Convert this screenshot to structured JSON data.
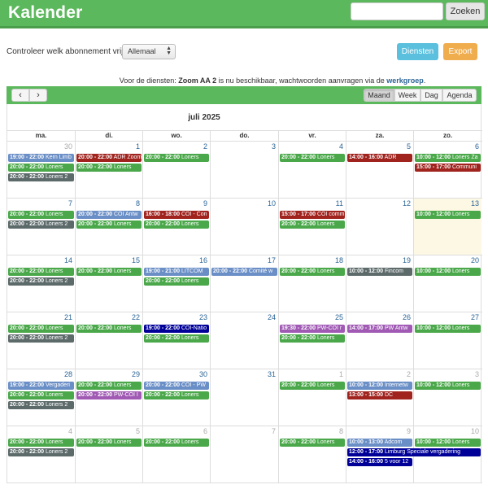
{
  "app": {
    "title": "Kalender"
  },
  "search": {
    "placeholder": "",
    "button": "Zoeken"
  },
  "controls": {
    "label": "Controleer welk abonnement vrij is:",
    "select_value": "Allemaal",
    "diensten": "Diensten",
    "export": "Export"
  },
  "notice": {
    "prefix": "Voor de diensten: ",
    "bold": "Zoom AA 2",
    "middle": " is nu beschikbaar, wachtwoorden aanvragen via de ",
    "link": "werkgroep",
    "suffix": "."
  },
  "toolbar": {
    "prev": "‹",
    "next": "›",
    "views": [
      "Maand",
      "Week",
      "Dag",
      "Agenda"
    ],
    "active_view": "Maand"
  },
  "calendar": {
    "title": "juli 2025",
    "weekdays": [
      "ma.",
      "di.",
      "wo.",
      "do.",
      "vr.",
      "za.",
      "zo."
    ],
    "colors": {
      "blue": "#6a8ec6",
      "green": "#4aa84a",
      "gray": "#5d6a6a",
      "red": "#a0231e",
      "purple": "#a05ab4",
      "navy": "#000099",
      "today_bg": "#fcf8e3"
    },
    "weeks": [
      [
        {
          "n": "30",
          "other": true,
          "ev": [
            {
              "time": "19:00 - 22:00",
              "title": "Kern Limb",
              "color": "blue"
            },
            {
              "time": "20:00 - 22:00",
              "title": "Loners",
              "color": "green"
            },
            {
              "time": "20:00 - 22:00",
              "title": "Loners 2",
              "color": "gray"
            }
          ]
        },
        {
          "n": "1",
          "ev": [
            {
              "time": "20:00 - 22:00",
              "title": "ADR Zoom",
              "color": "red"
            },
            {
              "time": "20:00 - 22:00",
              "title": "Loners",
              "color": "green"
            }
          ]
        },
        {
          "n": "2",
          "ev": [
            {
              "time": "20:00 - 22:00",
              "title": "Loners",
              "color": "green"
            }
          ]
        },
        {
          "n": "3",
          "ev": []
        },
        {
          "n": "4",
          "ev": [
            {
              "time": "20:00 - 22:00",
              "title": "Loners",
              "color": "green"
            }
          ]
        },
        {
          "n": "5",
          "ev": [
            {
              "time": "14:00 - 16:00",
              "title": "ADR",
              "color": "red"
            }
          ]
        },
        {
          "n": "6",
          "ev": [
            {
              "time": "10:00 - 12:00",
              "title": "Loners Za",
              "color": "green"
            },
            {
              "time": "15:00 - 17:00",
              "title": "Communi",
              "color": "red"
            }
          ]
        }
      ],
      [
        {
          "n": "7",
          "ev": [
            {
              "time": "20:00 - 22:00",
              "title": "Loners",
              "color": "green"
            },
            {
              "time": "20:00 - 22:00",
              "title": "Loners 2",
              "color": "gray"
            }
          ]
        },
        {
          "n": "8",
          "ev": [
            {
              "time": "20:00 - 22:00",
              "title": "COI Antw",
              "color": "blue"
            },
            {
              "time": "20:00 - 22:00",
              "title": "Loners",
              "color": "green"
            }
          ]
        },
        {
          "n": "9",
          "ev": [
            {
              "time": "16:00 - 18:00",
              "title": "COI - Con",
              "color": "red"
            },
            {
              "time": "20:00 - 22:00",
              "title": "Loners",
              "color": "green"
            }
          ]
        },
        {
          "n": "10",
          "ev": []
        },
        {
          "n": "11",
          "ev": [
            {
              "time": "15:00 - 17:00",
              "title": "COI comm",
              "color": "red"
            },
            {
              "time": "20:00 - 22:00",
              "title": "Loners",
              "color": "green"
            }
          ]
        },
        {
          "n": "12",
          "ev": []
        },
        {
          "n": "13",
          "today": true,
          "ev": [
            {
              "time": "10:00 - 12:00",
              "title": "Loners",
              "color": "green"
            }
          ]
        }
      ],
      [
        {
          "n": "14",
          "ev": [
            {
              "time": "20:00 - 22:00",
              "title": "Loners",
              "color": "green"
            },
            {
              "time": "20:00 - 22:00",
              "title": "Loners 2",
              "color": "gray"
            }
          ]
        },
        {
          "n": "15",
          "ev": [
            {
              "time": "20:00 - 22:00",
              "title": "Loners",
              "color": "green"
            }
          ]
        },
        {
          "n": "16",
          "ev": [
            {
              "time": "19:00 - 21:00",
              "title": "LITCOM",
              "color": "blue"
            },
            {
              "time": "20:00 - 22:00",
              "title": "Loners",
              "color": "green"
            }
          ]
        },
        {
          "n": "17",
          "ev": [
            {
              "time": "20:00 - 22:00",
              "title": "Comité w",
              "color": "blue"
            }
          ]
        },
        {
          "n": "18",
          "ev": [
            {
              "time": "20:00 - 22:00",
              "title": "Loners",
              "color": "green"
            }
          ]
        },
        {
          "n": "19",
          "ev": [
            {
              "time": "10:00 - 12:00",
              "title": "Fincom",
              "color": "gray"
            }
          ]
        },
        {
          "n": "20",
          "ev": [
            {
              "time": "10:00 - 12:00",
              "title": "Loners",
              "color": "green"
            }
          ]
        }
      ],
      [
        {
          "n": "21",
          "ev": [
            {
              "time": "20:00 - 22:00",
              "title": "Loners",
              "color": "green"
            },
            {
              "time": "20:00 - 22:00",
              "title": "Loners 2",
              "color": "gray"
            }
          ]
        },
        {
          "n": "22",
          "ev": [
            {
              "time": "20:00 - 22:00",
              "title": "Loners",
              "color": "green"
            }
          ]
        },
        {
          "n": "23",
          "ev": [
            {
              "time": "19:00 - 22:00",
              "title": "COI-Natio",
              "color": "navy"
            },
            {
              "time": "20:00 - 22:00",
              "title": "Loners",
              "color": "green"
            }
          ]
        },
        {
          "n": "24",
          "ev": []
        },
        {
          "n": "25",
          "ev": [
            {
              "time": "19:30 - 22:00",
              "title": "PW-COI r",
              "color": "purple"
            },
            {
              "time": "20:00 - 22:00",
              "title": "Loners",
              "color": "green"
            }
          ]
        },
        {
          "n": "26",
          "ev": [
            {
              "time": "14:00 - 17:00",
              "title": "PW Antw",
              "color": "purple"
            }
          ]
        },
        {
          "n": "27",
          "ev": [
            {
              "time": "10:00 - 12:00",
              "title": "Loners",
              "color": "green"
            }
          ]
        }
      ],
      [
        {
          "n": "28",
          "ev": [
            {
              "time": "19:00 - 22:00",
              "title": "Vergaderi",
              "color": "blue"
            },
            {
              "time": "20:00 - 22:00",
              "title": "Loners",
              "color": "green"
            },
            {
              "time": "20:00 - 22:00",
              "title": "Loners 2",
              "color": "gray"
            }
          ]
        },
        {
          "n": "29",
          "ev": [
            {
              "time": "20:00 - 22:00",
              "title": "Loners",
              "color": "green"
            },
            {
              "time": "20:00 - 22:00",
              "title": "PW-COI I",
              "color": "purple"
            }
          ]
        },
        {
          "n": "30",
          "ev": [
            {
              "time": "20:00 - 22:00",
              "title": "COI - PW",
              "color": "blue"
            },
            {
              "time": "20:00 - 22:00",
              "title": "Loners",
              "color": "green"
            }
          ]
        },
        {
          "n": "31",
          "ev": []
        },
        {
          "n": "1",
          "other": true,
          "ev": [
            {
              "time": "20:00 - 22:00",
              "title": "Loners",
              "color": "green"
            }
          ]
        },
        {
          "n": "2",
          "other": true,
          "ev": [
            {
              "time": "10:00 - 12:00",
              "title": "Internetw",
              "color": "blue"
            },
            {
              "time": "13:00 - 15:00",
              "title": "DC",
              "color": "red"
            }
          ]
        },
        {
          "n": "3",
          "other": true,
          "ev": [
            {
              "time": "10:00 - 12:00",
              "title": "Loners",
              "color": "green"
            }
          ]
        }
      ],
      [
        {
          "n": "4",
          "other": true,
          "ev": [
            {
              "time": "20:00 - 22:00",
              "title": "Loners",
              "color": "green"
            },
            {
              "time": "20:00 - 22:00",
              "title": "Loners 2",
              "color": "gray"
            }
          ]
        },
        {
          "n": "5",
          "other": true,
          "ev": [
            {
              "time": "20:00 - 22:00",
              "title": "Loners",
              "color": "green"
            }
          ]
        },
        {
          "n": "6",
          "other": true,
          "ev": [
            {
              "time": "20:00 - 22:00",
              "title": "Loners",
              "color": "green"
            }
          ]
        },
        {
          "n": "7",
          "other": true,
          "ev": []
        },
        {
          "n": "8",
          "other": true,
          "ev": [
            {
              "time": "20:00 - 22:00",
              "title": "Loners",
              "color": "green"
            }
          ]
        },
        {
          "n": "9",
          "other": true,
          "ev": [
            {
              "time": "10:00 - 13:00",
              "title": "Adcom",
              "color": "blue"
            },
            {
              "time": "12:00 - 17:00",
              "title": "Limburg Speciale vergadering",
              "color": "navy",
              "span": 2
            },
            {
              "time": "14:00 - 16:00",
              "title": "5 voor 12",
              "color": "navy"
            }
          ]
        },
        {
          "n": "10",
          "other": true,
          "ev": [
            {
              "time": "10:00 - 12:00",
              "title": "Loners",
              "color": "green"
            }
          ]
        }
      ]
    ]
  }
}
